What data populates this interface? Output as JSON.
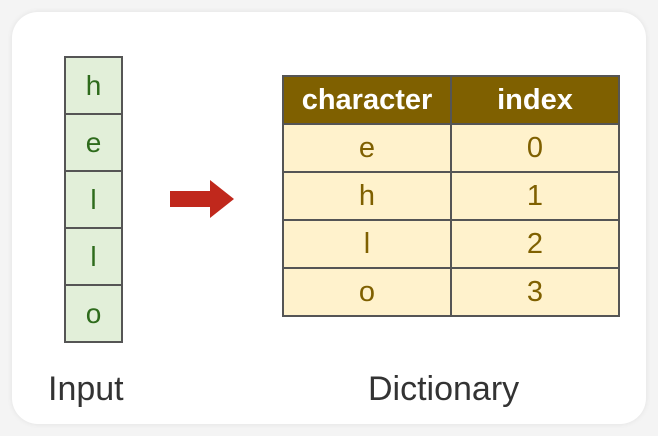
{
  "input": {
    "label": "Input",
    "characters": [
      "h",
      "e",
      "l",
      "l",
      "o"
    ]
  },
  "dictionary": {
    "label": "Dictionary",
    "headers": [
      "character",
      "index"
    ],
    "rows": [
      [
        "e",
        "0"
      ],
      [
        "h",
        "1"
      ],
      [
        "l",
        "2"
      ],
      [
        "o",
        "3"
      ]
    ]
  },
  "colors": {
    "input_fill": "#e2efd9",
    "input_text": "#2e6b1c",
    "header_fill": "#7f6000",
    "cell_fill": "#fff2cc",
    "cell_text": "#7f6000",
    "arrow": "#c0281c"
  },
  "icons": {
    "arrow": "right-arrow-icon"
  }
}
